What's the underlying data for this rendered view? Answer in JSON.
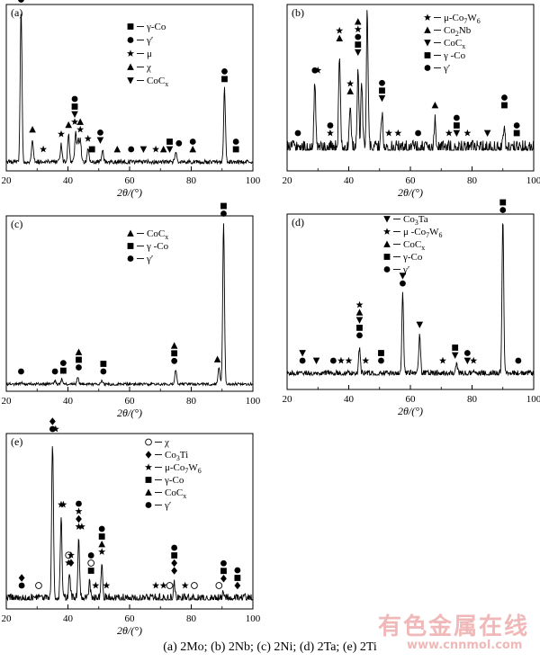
{
  "caption": "(a) 2Mo; (b) 2Nb; (c) 2Ni; (d) 2Ta; (e) 2Ti",
  "watermark": {
    "text": "有色金属在线",
    "url": "www.cnnmol.com"
  },
  "chart_data": [
    {
      "type": "line",
      "panel": "(a)",
      "xlabel": "2θ/(°)",
      "xlim": [
        20,
        100
      ],
      "xticks": [
        "20",
        "40",
        "60",
        "80",
        "100"
      ],
      "legend": [
        {
          "symbol": "square",
          "label": "γ-Co"
        },
        {
          "symbol": "circle",
          "label": "γ′"
        },
        {
          "symbol": "star",
          "label": "μ"
        },
        {
          "symbol": "triangle-up",
          "label": "χ"
        },
        {
          "symbol": "triangle-down",
          "label": "CoCx"
        }
      ],
      "series": [
        {
          "values": [
            [
              24.8,
              1.0
            ],
            [
              28.5,
              0.15
            ],
            [
              37.8,
              0.12
            ],
            [
              40.2,
              0.18
            ],
            [
              42.5,
              0.2
            ],
            [
              43.3,
              0.14
            ],
            [
              44.0,
              0.15
            ],
            [
              46.5,
              0.09
            ],
            [
              51.2,
              0.08
            ],
            [
              75.0,
              0.06
            ],
            [
              90.8,
              0.48
            ]
          ]
        }
      ],
      "markers": [
        {
          "x": 24.8,
          "stack": [
            "circle"
          ]
        },
        {
          "x": 28.5,
          "stack": [
            "triangle-up"
          ]
        },
        {
          "x": 32.0,
          "stack": [
            "star"
          ]
        },
        {
          "x": 37.8,
          "stack": [
            "star"
          ]
        },
        {
          "x": 40.2,
          "stack": [
            "triangle-up"
          ]
        },
        {
          "x": 42.2,
          "stack": [
            "circle",
            "square",
            "triangle-down",
            "star"
          ]
        },
        {
          "x": 44.0,
          "stack": [
            "triangle-up",
            "star"
          ]
        },
        {
          "x": 46.5,
          "stack": [
            "star"
          ]
        },
        {
          "x": 47.8,
          "stack": [
            "square"
          ]
        },
        {
          "x": 50.5,
          "stack": [
            "circle",
            "triangle-down"
          ]
        },
        {
          "x": 56.0,
          "stack": [
            "triangle-up"
          ]
        },
        {
          "x": 60.5,
          "stack": [
            "circle"
          ]
        },
        {
          "x": 64.5,
          "stack": [
            "triangle-down"
          ]
        },
        {
          "x": 68.5,
          "stack": [
            "star"
          ]
        },
        {
          "x": 71.0,
          "stack": [
            "triangle-up"
          ]
        },
        {
          "x": 73.0,
          "stack": [
            "square",
            "triangle-down"
          ]
        },
        {
          "x": 76.0,
          "stack": [
            "circle"
          ]
        },
        {
          "x": 80.5,
          "stack": [
            "circle",
            "triangle-up"
          ]
        },
        {
          "x": 90.8,
          "stack": [
            "circle",
            "square"
          ]
        },
        {
          "x": 94.5,
          "stack": [
            "circle",
            "square"
          ]
        }
      ]
    },
    {
      "type": "line",
      "panel": "(b)",
      "xlabel": "2θ/(°)",
      "xlim": [
        20,
        100
      ],
      "xticks": [
        "20",
        "40",
        "60",
        "80",
        "100"
      ],
      "legend": [
        {
          "symbol": "star",
          "label": "μ-Co7W6"
        },
        {
          "symbol": "triangle-up",
          "label": "Co2Nb"
        },
        {
          "symbol": "triangle-down",
          "label": "CoCx"
        },
        {
          "symbol": "square",
          "label": "γ -Co"
        },
        {
          "symbol": "circle",
          "label": "γ′"
        }
      ],
      "series": [
        {
          "values": [
            [
              29.0,
              0.45
            ],
            [
              37.0,
              0.68
            ],
            [
              40.5,
              0.3
            ],
            [
              43.0,
              0.58
            ],
            [
              44.2,
              0.48
            ],
            [
              46.0,
              1.0
            ],
            [
              50.8,
              0.25
            ],
            [
              68.0,
              0.2
            ],
            [
              90.5,
              0.2
            ]
          ]
        }
      ],
      "markers": [
        {
          "x": 23.5,
          "stack": [
            "circle"
          ]
        },
        {
          "x": 29.0,
          "stack": [
            "circle"
          ]
        },
        {
          "x": 30.0,
          "stack": [
            "star"
          ]
        },
        {
          "x": 34.0,
          "stack": [
            "circle",
            "star"
          ]
        },
        {
          "x": 37.0,
          "stack": [
            "star",
            "triangle-up"
          ]
        },
        {
          "x": 40.5,
          "stack": [
            "star",
            "triangle-up"
          ]
        },
        {
          "x": 43.0,
          "stack": [
            "triangle-up",
            "star",
            "circle",
            "square",
            "triangle-down"
          ]
        },
        {
          "x": 46.0,
          "stack": [
            "star",
            "triangle-up"
          ]
        },
        {
          "x": 50.8,
          "stack": [
            "circle",
            "square",
            "triangle-down"
          ]
        },
        {
          "x": 53.0,
          "stack": [
            "star"
          ]
        },
        {
          "x": 56.0,
          "stack": [
            "star"
          ]
        },
        {
          "x": 62.5,
          "stack": [
            "circle"
          ]
        },
        {
          "x": 68.0,
          "stack": [
            "triangle-up"
          ]
        },
        {
          "x": 72.5,
          "stack": [
            "star"
          ]
        },
        {
          "x": 75.0,
          "stack": [
            "circle",
            "square",
            "triangle-down"
          ]
        },
        {
          "x": 78.5,
          "stack": [
            "star"
          ]
        },
        {
          "x": 85.0,
          "stack": [
            "triangle-down"
          ]
        },
        {
          "x": 90.5,
          "stack": [
            "circle",
            "square"
          ]
        },
        {
          "x": 94.5,
          "stack": [
            "circle",
            "square"
          ]
        }
      ]
    },
    {
      "type": "line",
      "panel": "(c)",
      "xlabel": "2θ/(°)",
      "xlim": [
        20,
        100
      ],
      "xticks": [
        "20",
        "40",
        "60",
        "80",
        "100"
      ],
      "legend": [
        {
          "symbol": "triangle-up",
          "label": "CoCx"
        },
        {
          "symbol": "square",
          "label": "γ -Co"
        },
        {
          "symbol": "circle",
          "label": "γ′"
        }
      ],
      "series": [
        {
          "values": [
            [
              24.8,
              0.01
            ],
            [
              35.8,
              0.02
            ],
            [
              38.0,
              0.03
            ],
            [
              43.2,
              0.05
            ],
            [
              51.0,
              0.02
            ],
            [
              75.0,
              0.09
            ],
            [
              89.0,
              0.1
            ],
            [
              90.5,
              1.0
            ]
          ]
        }
      ],
      "markers": [
        {
          "x": 24.8,
          "stack": [
            "circle"
          ]
        },
        {
          "x": 35.8,
          "stack": [
            "circle"
          ]
        },
        {
          "x": 38.5,
          "stack": [
            "circle",
            "square"
          ]
        },
        {
          "x": 43.5,
          "stack": [
            "triangle-up",
            "square",
            "circle"
          ]
        },
        {
          "x": 51.5,
          "stack": [
            "square",
            "circle"
          ]
        },
        {
          "x": 74.5,
          "stack": [
            "triangle-up",
            "square",
            "circle"
          ]
        },
        {
          "x": 88.5,
          "stack": [
            "triangle-up"
          ]
        },
        {
          "x": 90.5,
          "stack": [
            "square",
            "circle"
          ]
        }
      ]
    },
    {
      "type": "line",
      "panel": "(d)",
      "xlabel": "2θ/(°)",
      "xlim": [
        20,
        100
      ],
      "xticks": [
        "20",
        "40",
        "60",
        "80",
        "100"
      ],
      "legend": [
        {
          "symbol": "triangle-down",
          "label": "Co3Ta"
        },
        {
          "symbol": "star",
          "label": "μ -Co7W6"
        },
        {
          "symbol": "triangle-up",
          "label": "CoCx"
        },
        {
          "symbol": "square",
          "label": "γ-Co"
        },
        {
          "symbol": "circle",
          "label": "γ′"
        }
      ],
      "series": [
        {
          "values": [
            [
              43.5,
              0.18
            ],
            [
              57.5,
              0.52
            ],
            [
              63.0,
              0.25
            ],
            [
              75.0,
              0.05
            ],
            [
              90.0,
              1.0
            ]
          ]
        }
      ],
      "markers": [
        {
          "x": 25.0,
          "stack": [
            "triangle-down",
            "circle"
          ]
        },
        {
          "x": 29.5,
          "stack": [
            "triangle-down"
          ]
        },
        {
          "x": 35.0,
          "stack": [
            "circle"
          ]
        },
        {
          "x": 37.5,
          "stack": [
            "star"
          ]
        },
        {
          "x": 40.0,
          "stack": [
            "star"
          ]
        },
        {
          "x": 43.5,
          "stack": [
            "star",
            "triangle-up",
            "triangle-down",
            "square",
            "circle"
          ]
        },
        {
          "x": 45.5,
          "stack": [
            "star"
          ]
        },
        {
          "x": 50.5,
          "stack": [
            "square",
            "circle"
          ]
        },
        {
          "x": 57.5,
          "stack": [
            "triangle-down",
            "circle"
          ]
        },
        {
          "x": 63.0,
          "stack": [
            "triangle-down"
          ]
        },
        {
          "x": 70.5,
          "stack": [
            "star"
          ]
        },
        {
          "x": 74.5,
          "stack": [
            "square",
            "triangle-down"
          ]
        },
        {
          "x": 78.5,
          "stack": [
            "circle",
            "triangle-down"
          ]
        },
        {
          "x": 80.5,
          "stack": [
            "star"
          ]
        },
        {
          "x": 90.0,
          "stack": [
            "square",
            "circle"
          ]
        },
        {
          "x": 95.0,
          "stack": [
            "circle"
          ]
        }
      ]
    },
    {
      "type": "line",
      "panel": "(e)",
      "xlabel": "2θ/(°)",
      "xlim": [
        20,
        100
      ],
      "xticks": [
        "20",
        "40",
        "60",
        "80",
        "100"
      ],
      "legend": [
        {
          "symbol": "open-circle",
          "label": "χ"
        },
        {
          "symbol": "diamond",
          "label": "Co3Ti"
        },
        {
          "symbol": "star",
          "label": "μ-Co7W6"
        },
        {
          "symbol": "square",
          "label": "γ-Co"
        },
        {
          "symbol": "triangle-up",
          "label": "CoCx"
        },
        {
          "symbol": "circle",
          "label": "γ′"
        }
      ],
      "series": [
        {
          "values": [
            [
              35.0,
              1.0
            ],
            [
              37.8,
              0.52
            ],
            [
              40.5,
              0.15
            ],
            [
              43.5,
              0.38
            ],
            [
              47.0,
              0.1
            ],
            [
              51.0,
              0.22
            ],
            [
              74.5,
              0.1
            ],
            [
              90.5,
              0.05
            ]
          ]
        }
      ],
      "markers": [
        {
          "x": 25.0,
          "stack": [
            "diamond",
            "circle"
          ]
        },
        {
          "x": 30.5,
          "stack": [
            "open-circle"
          ]
        },
        {
          "x": 35.0,
          "stack": [
            "diamond",
            "circle"
          ]
        },
        {
          "x": 36.0,
          "stack": [
            "star"
          ]
        },
        {
          "x": 37.8,
          "stack": [
            "star"
          ]
        },
        {
          "x": 38.5,
          "stack": [
            "star"
          ]
        },
        {
          "x": 40.2,
          "stack": [
            "open-circle",
            "star"
          ]
        },
        {
          "x": 41.0,
          "stack": [
            "star",
            "diamond"
          ]
        },
        {
          "x": 43.5,
          "stack": [
            "circle",
            "star",
            "diamond",
            "star"
          ]
        },
        {
          "x": 44.5,
          "stack": [
            "star"
          ]
        },
        {
          "x": 47.5,
          "stack": [
            "circle",
            "open-circle",
            "square"
          ]
        },
        {
          "x": 49.0,
          "stack": [
            "star"
          ]
        },
        {
          "x": 51.0,
          "stack": [
            "circle",
            "square",
            "triangle-up",
            "star"
          ]
        },
        {
          "x": 52.5,
          "stack": [
            "star"
          ]
        },
        {
          "x": 68.5,
          "stack": [
            "star"
          ]
        },
        {
          "x": 71.0,
          "stack": [
            "star"
          ]
        },
        {
          "x": 73.0,
          "stack": [
            "open-circle"
          ]
        },
        {
          "x": 74.5,
          "stack": [
            "circle",
            "square",
            "diamond",
            "diamond"
          ]
        },
        {
          "x": 78.0,
          "stack": [
            "star"
          ]
        },
        {
          "x": 81.0,
          "stack": [
            "open-circle"
          ]
        },
        {
          "x": 89.0,
          "stack": [
            "open-circle"
          ]
        },
        {
          "x": 90.5,
          "stack": [
            "circle",
            "square",
            "diamond"
          ]
        },
        {
          "x": 95.0,
          "stack": [
            "circle",
            "square",
            "diamond"
          ]
        }
      ]
    }
  ]
}
